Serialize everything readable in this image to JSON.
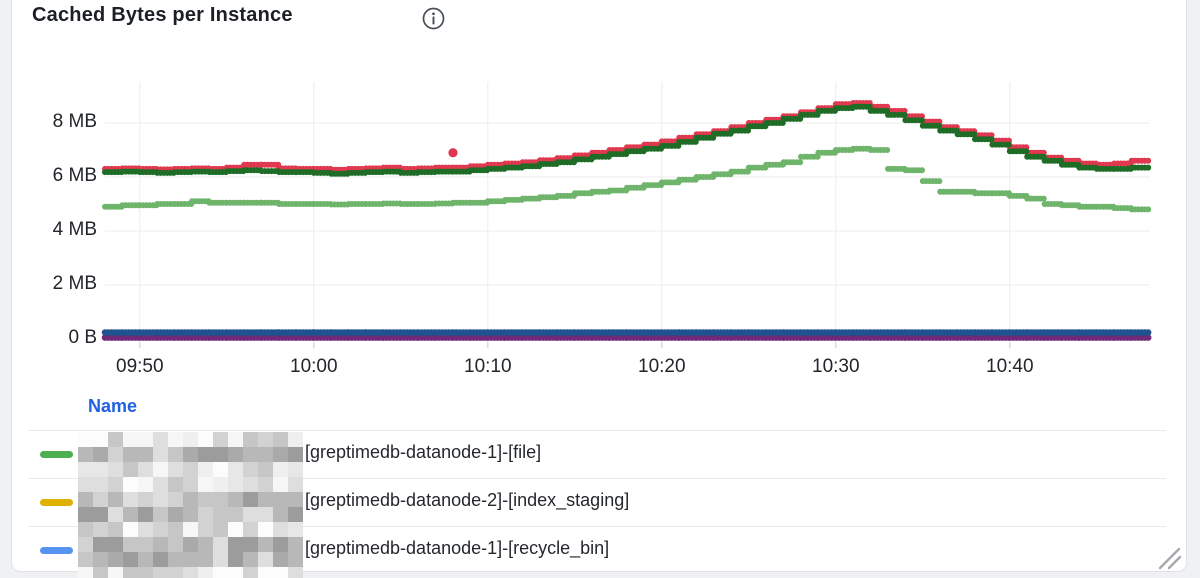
{
  "panel": {
    "title": "Cached Bytes per Instance",
    "info_icon": "info-circle",
    "background": "#ffffff",
    "border_color": "#dfe1e4"
  },
  "chart_data": {
    "type": "line",
    "render_style": "stepped-points",
    "title": "Cached Bytes per Instance",
    "unit": "bytes",
    "grid": true,
    "x_range": [
      "09:48",
      "10:48"
    ],
    "ylim_mb": [
      0,
      9.5
    ],
    "x_ticks": [
      "09:50",
      "10:00",
      "10:10",
      "10:20",
      "10:30",
      "10:40"
    ],
    "x_tick_minutes": [
      2,
      12,
      22,
      32,
      42,
      52
    ],
    "y_ticks": [
      "8 MB",
      "6 MB",
      "4 MB",
      "2 MB",
      "0 B"
    ],
    "y_tick_values": [
      8,
      6,
      4,
      2,
      0
    ],
    "grid_color": "#ececee",
    "tick_color": "#d5d7d9",
    "series": [
      {
        "name": "red-series",
        "color": "#e0384e",
        "x_start_min": 0,
        "step_min": 1,
        "values": [
          6.3,
          6.32,
          6.3,
          6.28,
          6.3,
          6.32,
          6.3,
          6.35,
          6.45,
          6.45,
          6.32,
          6.3,
          6.3,
          6.27,
          6.3,
          6.32,
          6.35,
          6.3,
          6.32,
          6.35,
          6.35,
          6.4,
          6.45,
          6.5,
          6.55,
          6.62,
          6.7,
          6.8,
          6.9,
          7.0,
          7.1,
          7.2,
          7.32,
          7.45,
          7.58,
          7.7,
          7.85,
          8.0,
          8.12,
          8.25,
          8.4,
          8.55,
          8.7,
          8.74,
          8.6,
          8.45,
          8.25,
          8.05,
          7.85,
          7.7,
          7.55,
          7.35,
          7.1,
          6.9,
          6.72,
          6.6,
          6.5,
          6.45,
          6.5,
          6.6,
          6.65
        ]
      },
      {
        "name": "dark-green-series",
        "color": "#1e6c26",
        "x_start_min": 0,
        "step_min": 1,
        "values": [
          6.18,
          6.2,
          6.18,
          6.15,
          6.18,
          6.2,
          6.18,
          6.22,
          6.25,
          6.22,
          6.18,
          6.18,
          6.15,
          6.12,
          6.15,
          6.18,
          6.2,
          6.15,
          6.18,
          6.2,
          6.2,
          6.25,
          6.3,
          6.35,
          6.4,
          6.48,
          6.55,
          6.65,
          6.75,
          6.85,
          6.95,
          7.05,
          7.15,
          7.3,
          7.45,
          7.6,
          7.72,
          7.88,
          8.0,
          8.15,
          8.3,
          8.45,
          8.55,
          8.6,
          8.45,
          8.3,
          8.1,
          7.9,
          7.72,
          7.58,
          7.4,
          7.2,
          6.95,
          6.75,
          6.6,
          6.45,
          6.35,
          6.3,
          6.3,
          6.35,
          6.35
        ]
      },
      {
        "name": "light-green-series",
        "color": "#6fb46b",
        "x_start_min": 0,
        "step_min": 1,
        "values": [
          4.9,
          4.95,
          4.95,
          5.0,
          5.0,
          5.1,
          5.05,
          5.05,
          5.05,
          5.05,
          5.0,
          5.0,
          5.0,
          4.98,
          5.0,
          5.0,
          5.02,
          5.0,
          5.0,
          5.02,
          5.05,
          5.05,
          5.1,
          5.15,
          5.2,
          5.25,
          5.3,
          5.4,
          5.45,
          5.5,
          5.6,
          5.7,
          5.8,
          5.9,
          6.0,
          6.1,
          6.2,
          6.35,
          6.45,
          6.55,
          6.75,
          6.9,
          7.0,
          7.05,
          7.0,
          6.3,
          6.25,
          5.85,
          5.45,
          5.45,
          5.4,
          5.4,
          5.3,
          5.2,
          5.0,
          4.95,
          4.9,
          4.9,
          4.85,
          4.8,
          4.8
        ]
      },
      {
        "name": "purple-series",
        "color": "#6f2a78",
        "x_start_min": 0,
        "step_min": 1,
        "constant": 0.05,
        "count": 61
      },
      {
        "name": "navy-series",
        "color": "#1f528f",
        "x_start_min": 0,
        "step_min": 1,
        "constant": 0.24,
        "count": 61
      }
    ],
    "outliers": [
      {
        "series": "red-series",
        "x_min": 20,
        "value_mb": 6.9
      }
    ]
  },
  "legend": {
    "header": "Name",
    "header_color": "#2061df",
    "rows": [
      {
        "color": "#4caf50",
        "label": "[greptimedb-datanode-1]-[file]",
        "prefix_redacted": true
      },
      {
        "color": "#dfb100",
        "label": "[greptimedb-datanode-2]-[index_staging]",
        "prefix_redacted": true
      },
      {
        "color": "#5794f2",
        "label": "[greptimedb-datanode-1]-[recycle_bin]",
        "prefix_redacted": true
      }
    ],
    "redaction": {
      "style": "pixelated-mosaic",
      "light_shades": [
        "#fcfcfc",
        "#f6f6f6",
        "#efefef",
        "#e7e7e7"
      ],
      "mid_shades": [
        "#dedede",
        "#d2d2d2",
        "#c6c6c6"
      ],
      "dark_shades": [
        "#b8b8b8",
        "#aaaaaa",
        "#9c9c9c"
      ]
    }
  },
  "resize_handle_color": "#a6a9ad"
}
